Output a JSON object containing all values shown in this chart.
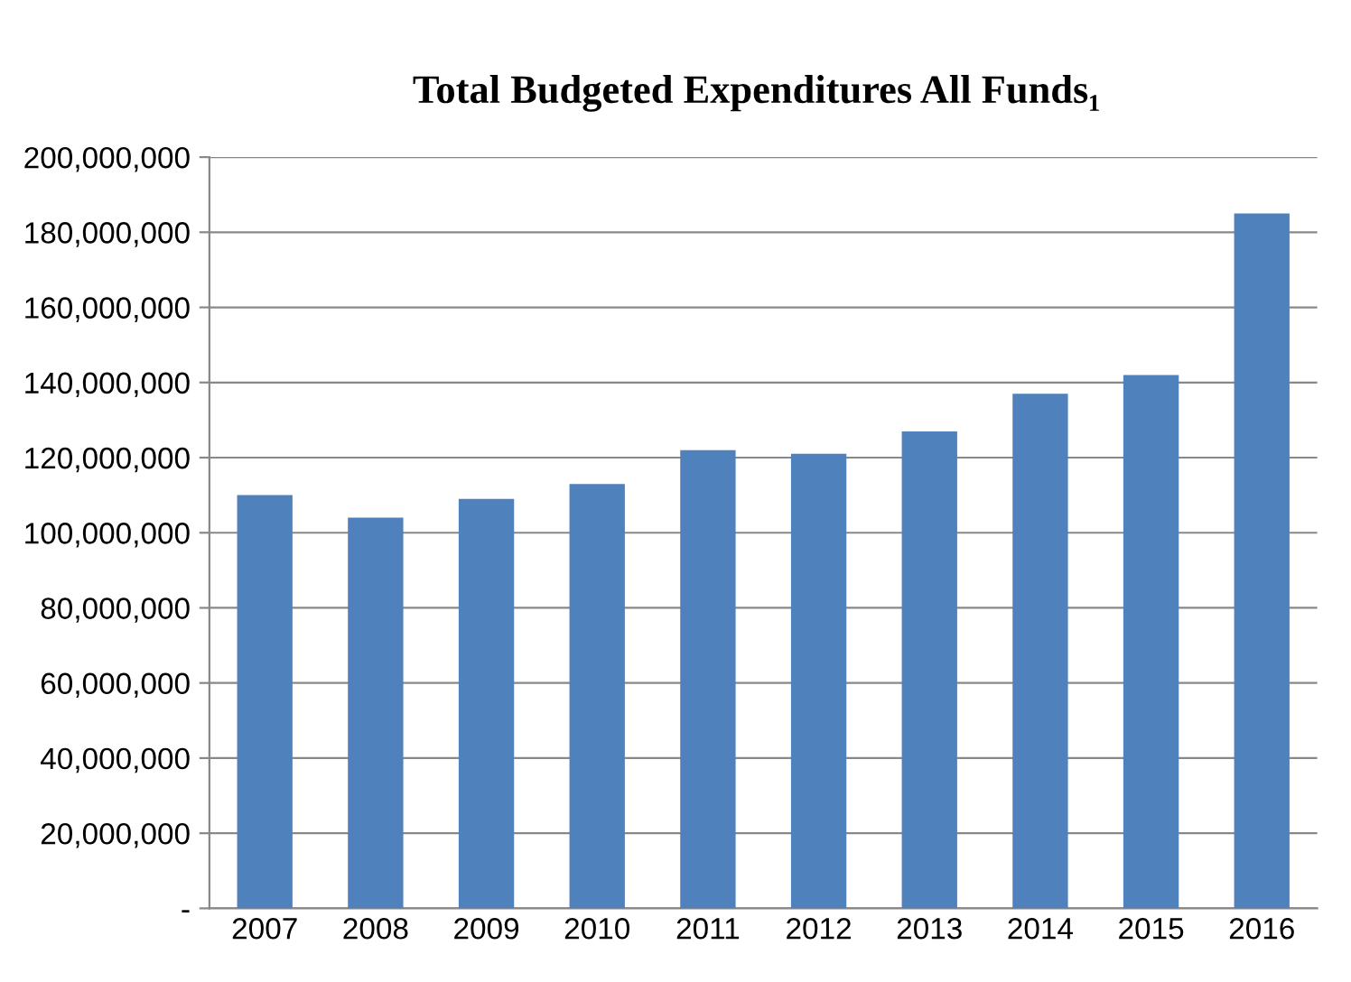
{
  "chart_data": {
    "type": "bar",
    "title": "Total Budgeted Expenditures All Funds₁",
    "categories": [
      "2007",
      "2008",
      "2009",
      "2010",
      "2011",
      "2012",
      "2013",
      "2014",
      "2015",
      "2016"
    ],
    "values": [
      110000000,
      104000000,
      109000000,
      113000000,
      122000000,
      121000000,
      127000000,
      137000000,
      142000000,
      185000000
    ],
    "color": "#4f81bd",
    "ylim": [
      0,
      200000000
    ],
    "yticks": [
      {
        "value": 0,
        "label": "-"
      },
      {
        "value": 20000000,
        "label": "20,000,000"
      },
      {
        "value": 40000000,
        "label": "40,000,000"
      },
      {
        "value": 60000000,
        "label": "60,000,000"
      },
      {
        "value": 80000000,
        "label": "80,000,000"
      },
      {
        "value": 100000000,
        "label": "100,000,000"
      },
      {
        "value": 120000000,
        "label": "120,000,000"
      },
      {
        "value": 140000000,
        "label": "140,000,000"
      },
      {
        "value": 160000000,
        "label": "160,000,000"
      },
      {
        "value": 180000000,
        "label": "180,000,000"
      },
      {
        "value": 200000000,
        "label": "200,000,000"
      }
    ],
    "grid": "y"
  }
}
